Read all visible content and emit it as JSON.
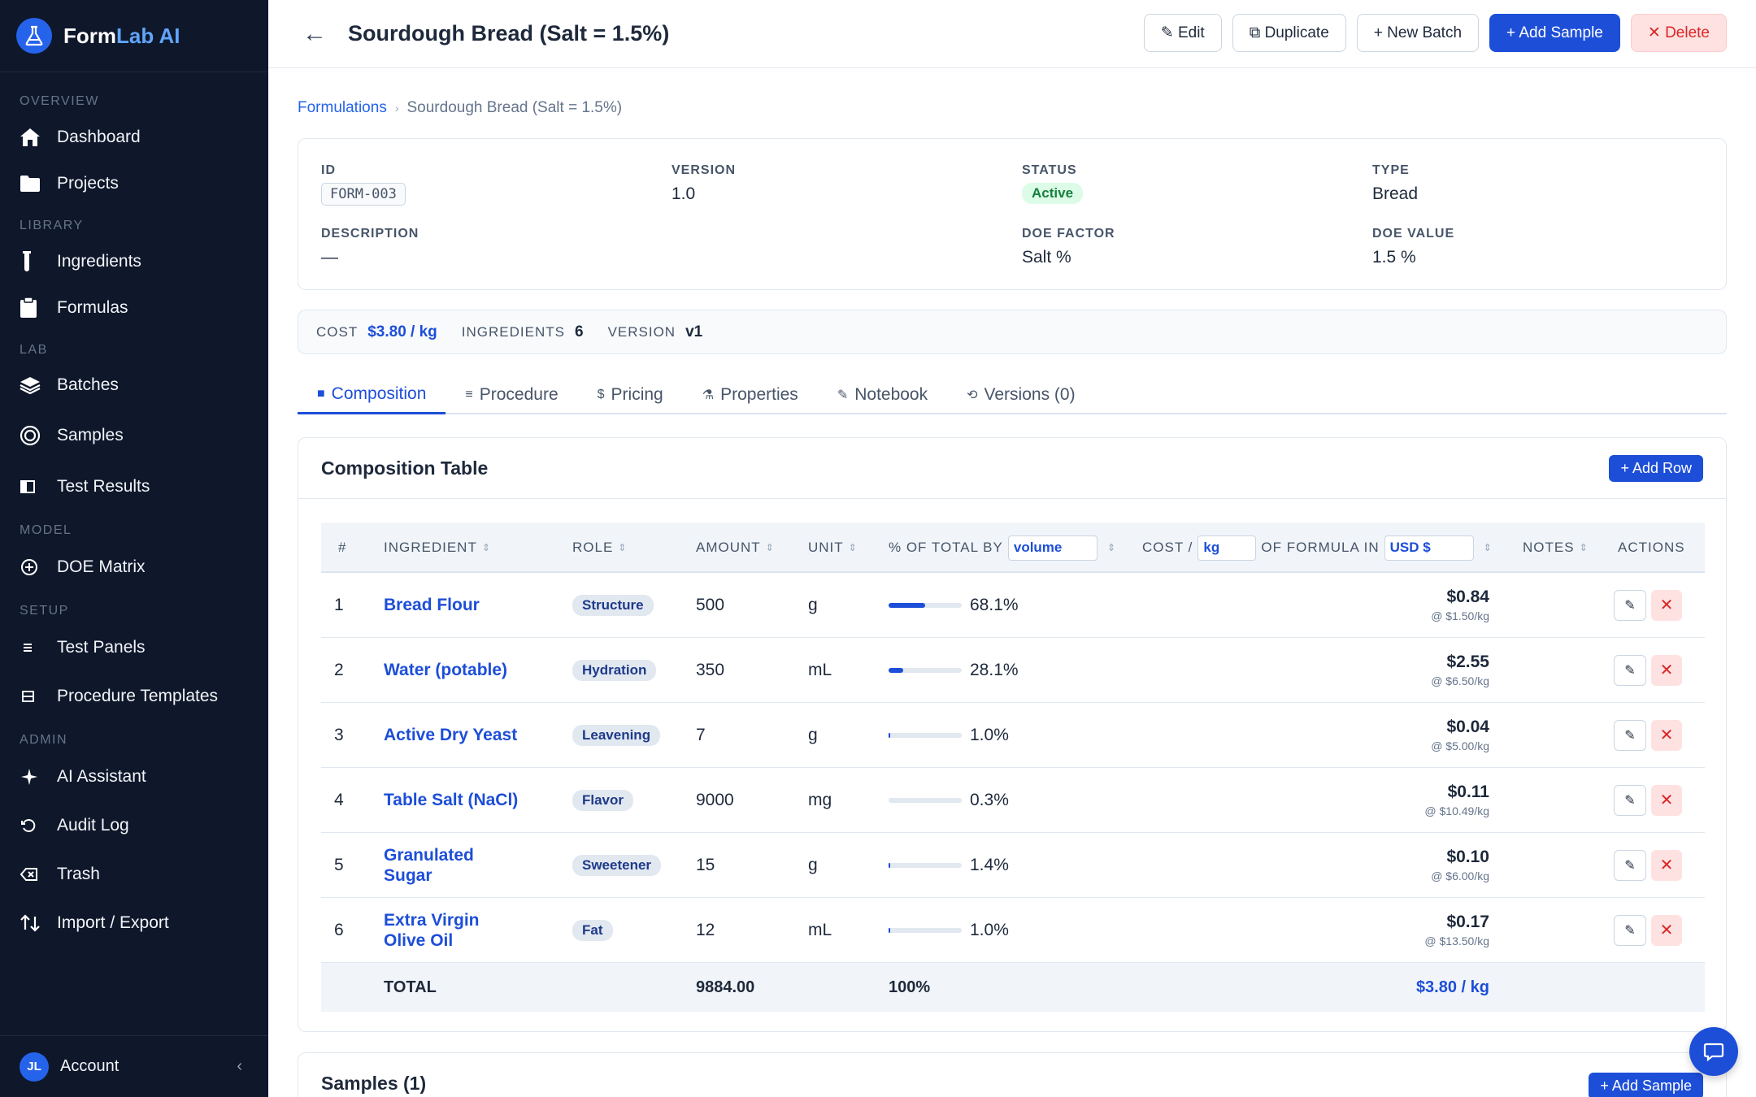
{
  "brand": {
    "name_part1": "Form",
    "name_part2": "Lab AI"
  },
  "sidebar": {
    "sections": [
      {
        "label": "OVERVIEW"
      },
      {
        "label": "LIBRARY"
      },
      {
        "label": "LAB"
      },
      {
        "label": "MODEL"
      },
      {
        "label": "SETUP"
      },
      {
        "label": "ADMIN"
      }
    ],
    "items": [
      {
        "label": "Dashboard",
        "icon": "home-icon"
      },
      {
        "label": "Projects",
        "icon": "folder-icon"
      },
      {
        "label": "Ingredients",
        "icon": "test-tube-icon"
      },
      {
        "label": "Formulas",
        "icon": "clipboard-icon"
      },
      {
        "label": "Batches",
        "icon": "stack-icon"
      },
      {
        "label": "Samples",
        "icon": "circle-icon"
      },
      {
        "label": "Test Results",
        "icon": "panel-icon"
      },
      {
        "label": "DOE Matrix",
        "icon": "plus-circle-icon"
      },
      {
        "label": "Test Panels",
        "icon": "list-icon"
      },
      {
        "label": "Procedure Templates",
        "icon": "template-icon"
      },
      {
        "label": "AI Assistant",
        "icon": "sparkle-icon"
      },
      {
        "label": "Audit Log",
        "icon": "history-icon"
      },
      {
        "label": "Trash",
        "icon": "trash-icon"
      },
      {
        "label": "Import / Export",
        "icon": "import-export-icon"
      }
    ],
    "account": {
      "initials": "JL",
      "label": "Account",
      "collapse": "‹"
    }
  },
  "header": {
    "back": "←",
    "title": "Sourdough Bread (Salt = 1.5%)",
    "buttons": {
      "edit": "✎ Edit",
      "duplicate": "⧉ Duplicate",
      "new_batch": "+ New Batch",
      "add_sample": "+ Add Sample",
      "delete": "✕ Delete"
    }
  },
  "breadcrumb": {
    "root": "Formulations",
    "sep": "›",
    "current": "Sourdough Bread (Salt = 1.5%)"
  },
  "info": {
    "id": {
      "label": "ID",
      "value": "FORM-003"
    },
    "version": {
      "label": "VERSION",
      "value": "1.0"
    },
    "status": {
      "label": "STATUS",
      "value": "Active"
    },
    "type": {
      "label": "TYPE",
      "value": "Bread"
    },
    "description": {
      "label": "DESCRIPTION",
      "value": "—"
    },
    "doe_factor": {
      "label": "DOE FACTOR",
      "value": "Salt %"
    },
    "doe_value": {
      "label": "DOE VALUE",
      "value": "1.5 %"
    }
  },
  "summary": {
    "cost_label": "COST",
    "cost_value": "$3.80 / kg",
    "ingredients_label": "INGREDIENTS",
    "ingredients_value": "6",
    "version_label": "VERSION",
    "version_value": "v1"
  },
  "tabs": [
    {
      "icon": "■",
      "label": "Composition"
    },
    {
      "icon": "≡",
      "label": "Procedure"
    },
    {
      "icon": "$",
      "label": "Pricing"
    },
    {
      "icon": "⚗",
      "label": "Properties"
    },
    {
      "icon": "✎",
      "label": "Notebook"
    },
    {
      "icon": "⟲",
      "label": "Versions (0)"
    }
  ],
  "composition": {
    "title": "Composition Table",
    "add_row": "+ Add Row",
    "columns": {
      "num": "#",
      "ingredient": "INGREDIENT",
      "role": "ROLE",
      "amount": "AMOUNT",
      "unit": "UNIT",
      "pct_prefix": "% OF TOTAL BY",
      "pct_select": "volume",
      "cost_prefix": "COST /",
      "cost_unit_select": "kg",
      "cost_mid": "OF FORMULA IN",
      "currency_select": "USD $",
      "notes": "NOTES",
      "actions": "ACTIONS"
    },
    "rows": [
      {
        "num": "1",
        "name": "Bread Flour",
        "role": "Structure",
        "amount": "500",
        "unit": "g",
        "pct": "68.1%",
        "pct_value": 68.1,
        "cost": "$0.84",
        "rate": "@ $1.50/kg"
      },
      {
        "num": "2",
        "name": "Water (potable)",
        "role": "Hydration",
        "amount": "350",
        "unit": "mL",
        "pct": "28.1%",
        "pct_value": 28.1,
        "cost": "$2.55",
        "rate": "@ $6.50/kg"
      },
      {
        "num": "3",
        "name": "Active Dry Yeast",
        "role": "Leavening",
        "amount": "7",
        "unit": "g",
        "pct": "1.0%",
        "pct_value": 1.0,
        "cost": "$0.04",
        "rate": "@ $5.00/kg"
      },
      {
        "num": "4",
        "name": "Table Salt (NaCl)",
        "role": "Flavor",
        "amount": "9000",
        "unit": "mg",
        "pct": "0.3%",
        "pct_value": 0.3,
        "cost": "$0.11",
        "rate": "@ $10.49/kg"
      },
      {
        "num": "5",
        "name": "Granulated Sugar",
        "role": "Sweetener",
        "amount": "15",
        "unit": "g",
        "pct": "1.4%",
        "pct_value": 1.4,
        "cost": "$0.10",
        "rate": "@ $6.00/kg"
      },
      {
        "num": "6",
        "name": "Extra Virgin Olive Oil",
        "role": "Fat",
        "amount": "12",
        "unit": "mL",
        "pct": "1.0%",
        "pct_value": 1.0,
        "cost": "$0.17",
        "rate": "@ $13.50/kg"
      }
    ],
    "total": {
      "label": "TOTAL",
      "amount": "9884.00",
      "pct": "100%",
      "cost": "$3.80 / kg"
    }
  },
  "samples": {
    "title": "Samples (1)",
    "add": "+ Add Sample"
  }
}
